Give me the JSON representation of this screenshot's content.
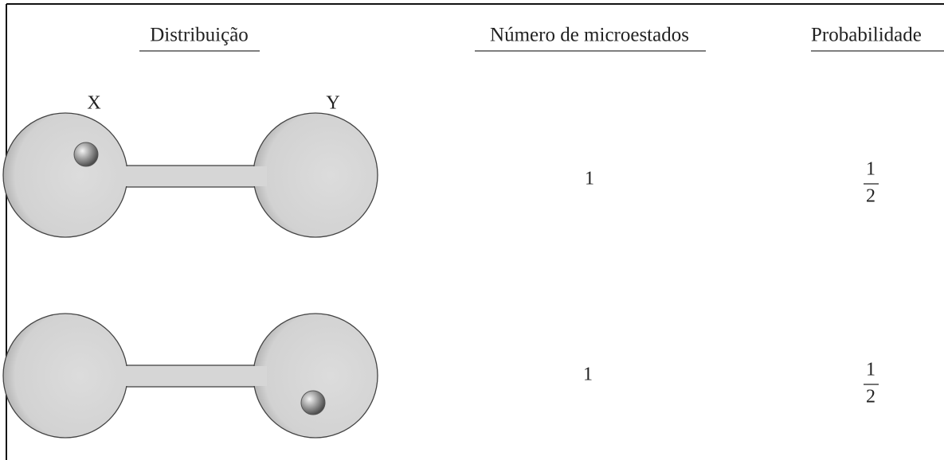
{
  "headers": [
    "Distribuição",
    "Número de microestados",
    "Probabilidade"
  ],
  "labels": {
    "x": "X",
    "y": "Y"
  },
  "rows": [
    {
      "microstates": 1,
      "probability": {
        "numerator": 1,
        "denominator": 2
      }
    },
    {
      "microstates": 1,
      "probability": {
        "numerator": 1,
        "denominator": 2
      }
    }
  ]
}
